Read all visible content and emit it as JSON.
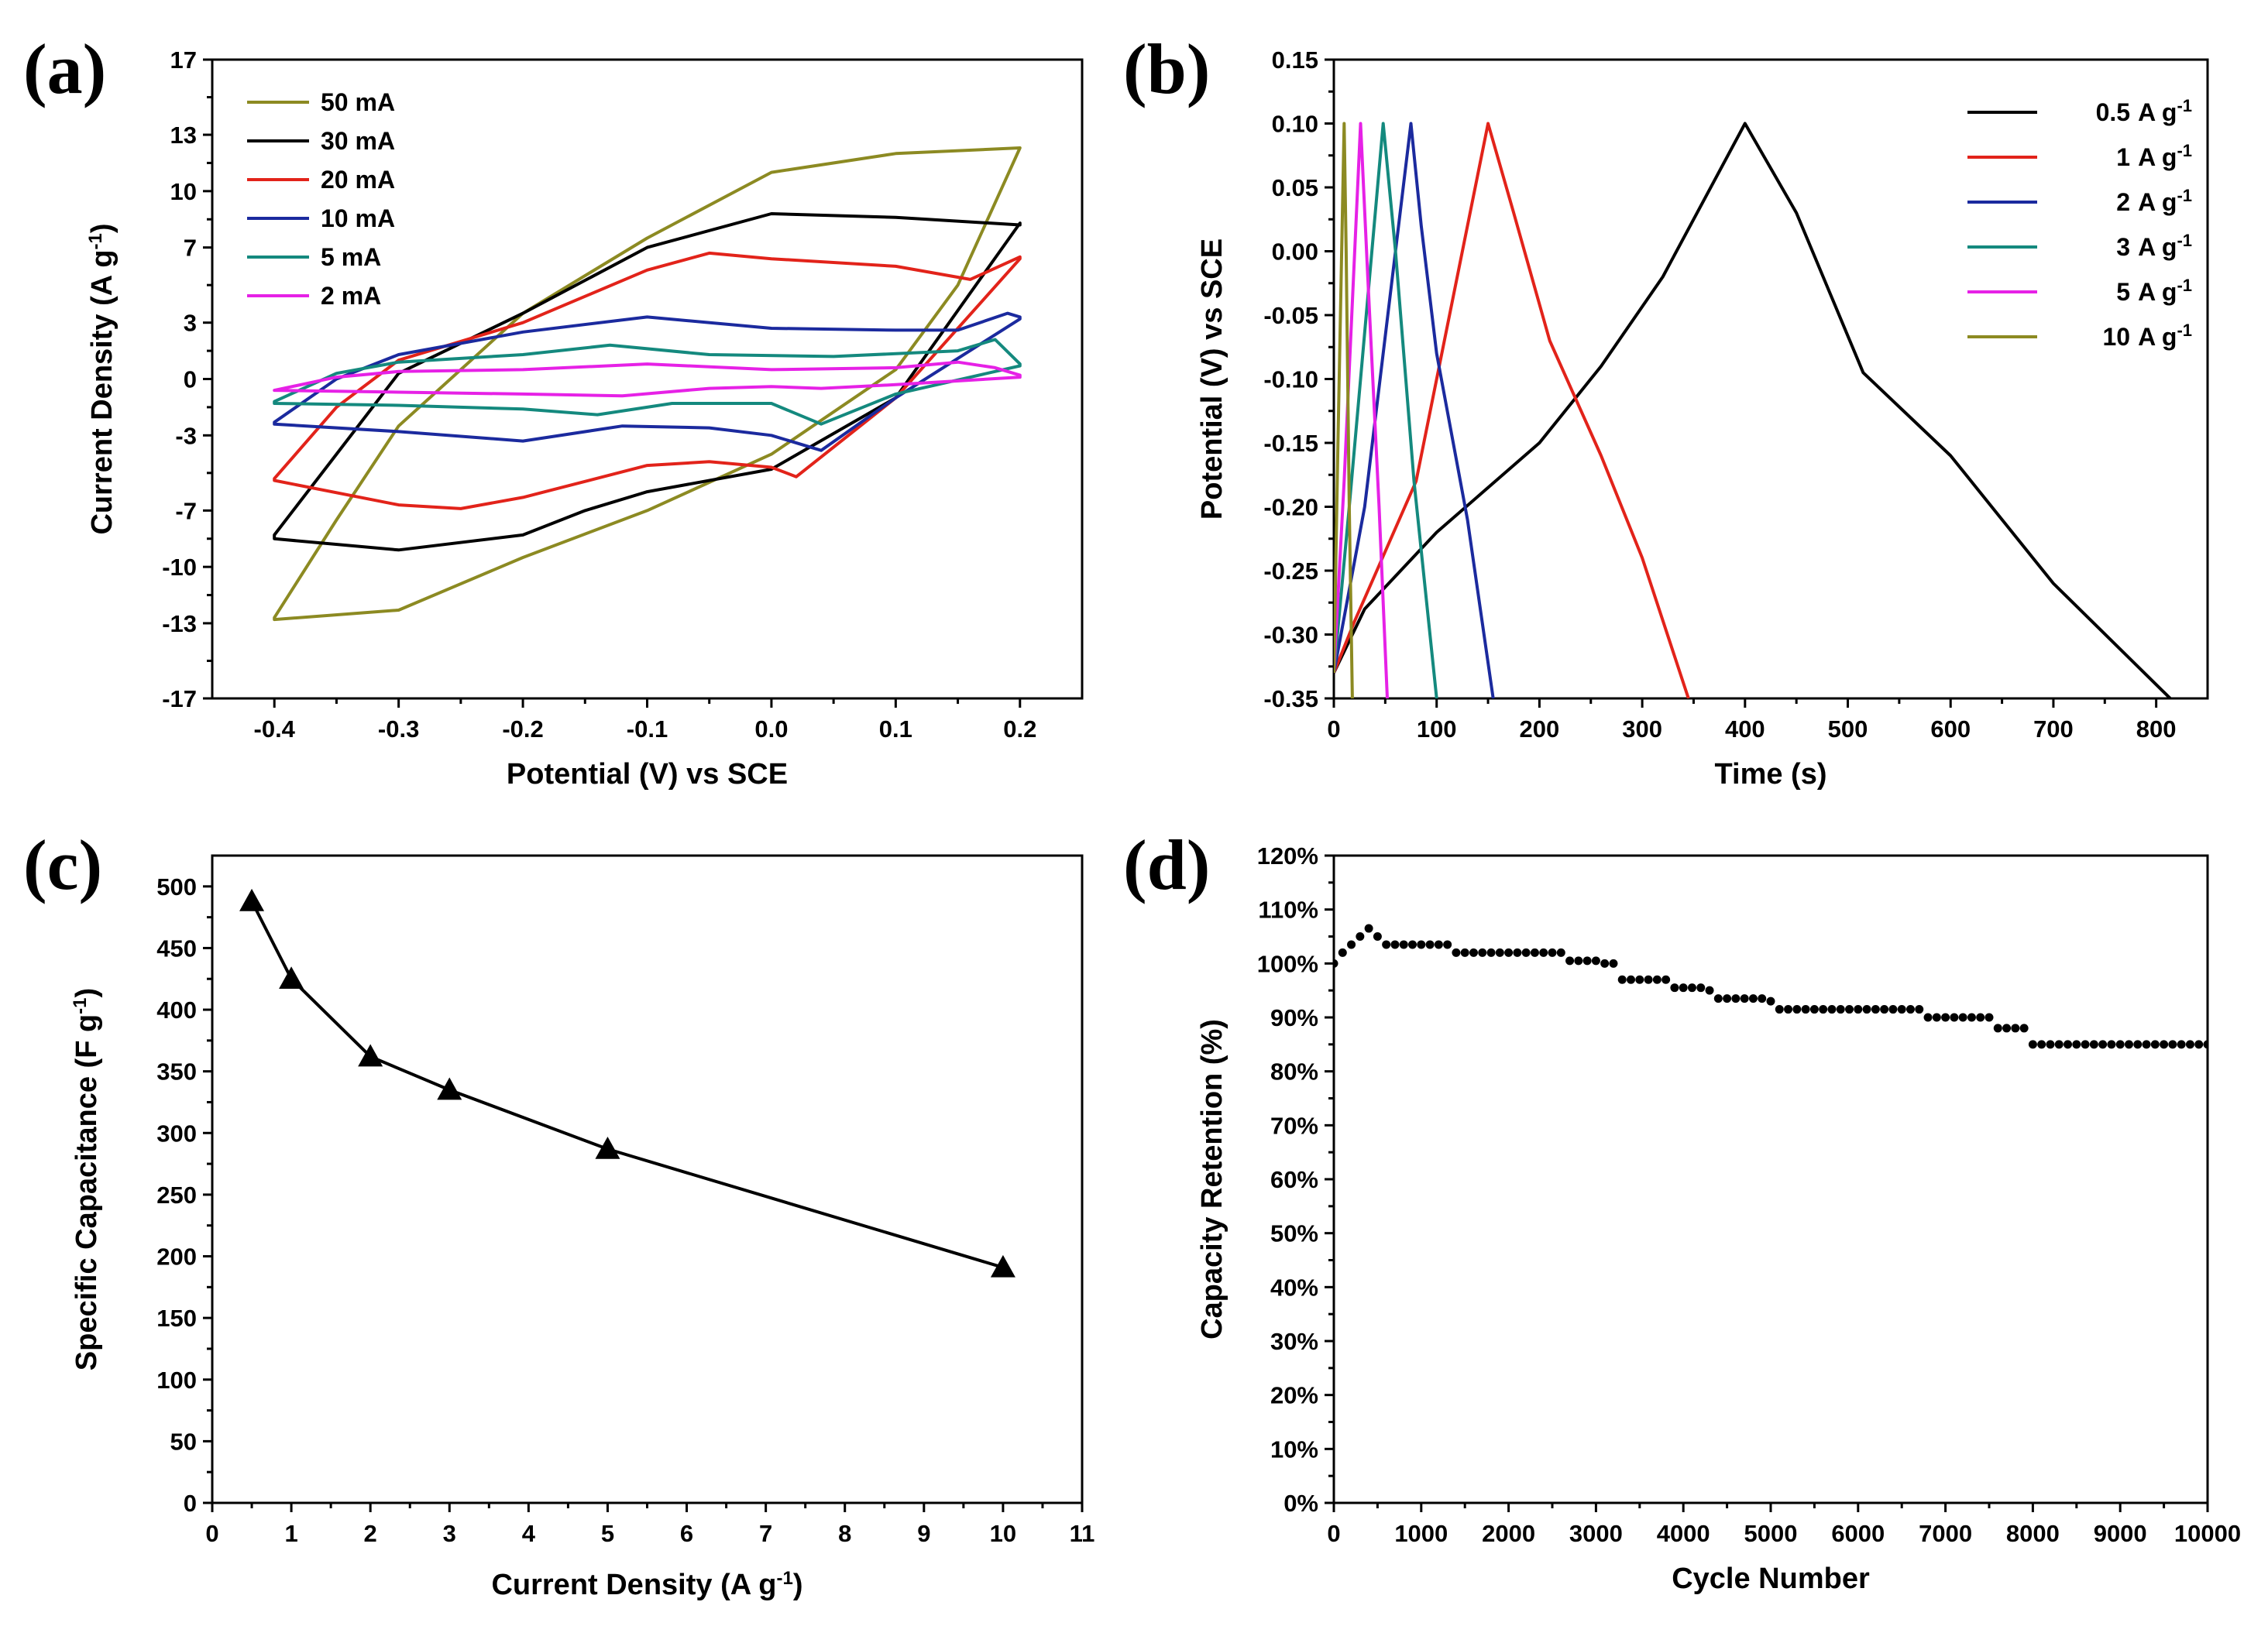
{
  "chart_data": [
    {
      "id": "a",
      "panel_label": "(a)",
      "type": "line",
      "xlabel": "Potential (V)   vs  SCE",
      "ylabel_main": "Current Density (A g",
      "ylabel_sup": "-1",
      "ylabel_end": ")",
      "xlim": [
        -0.45,
        0.25
      ],
      "ylim": [
        -17,
        17
      ],
      "xticks": [
        -0.4,
        -0.3,
        -0.2,
        -0.1,
        0.0,
        0.1,
        0.2
      ],
      "xtick_labels": [
        "-0.4",
        "-0.3",
        "-0.2",
        "-0.1",
        "0.0",
        "0.1",
        "0.2"
      ],
      "yticks": [
        -17,
        -13,
        -10,
        -7,
        -3,
        0,
        3,
        7,
        10,
        13,
        17
      ],
      "ytick_labels": [
        "-17",
        "-13",
        "-10",
        "-7",
        "-3",
        "0",
        "3",
        "7",
        "10",
        "13",
        "17"
      ],
      "legend_position": "top-left",
      "series": [
        {
          "name": "50 mA",
          "color": "#8c8a22",
          "upper": [
            [
              -0.4,
              -12.7
            ],
            [
              -0.35,
              -7.5
            ],
            [
              -0.3,
              -2.5
            ],
            [
              -0.2,
              3.5
            ],
            [
              -0.1,
              7.5
            ],
            [
              0.0,
              11.0
            ],
            [
              0.1,
              12.0
            ],
            [
              0.2,
              12.3
            ]
          ],
          "lower": [
            [
              -0.4,
              -12.8
            ],
            [
              -0.3,
              -12.3
            ],
            [
              -0.2,
              -9.5
            ],
            [
              -0.1,
              -7.0
            ],
            [
              0.0,
              -4.0
            ],
            [
              0.1,
              0.5
            ],
            [
              0.15,
              5.0
            ],
            [
              0.2,
              12.3
            ]
          ]
        },
        {
          "name": "30 mA",
          "color": "#000000",
          "upper": [
            [
              -0.4,
              -8.3
            ],
            [
              -0.35,
              -4.0
            ],
            [
              -0.3,
              0.3
            ],
            [
              -0.2,
              3.5
            ],
            [
              -0.1,
              7.0
            ],
            [
              0.0,
              8.8
            ],
            [
              0.1,
              8.6
            ],
            [
              0.2,
              8.2
            ]
          ],
          "lower": [
            [
              -0.4,
              -8.5
            ],
            [
              -0.3,
              -9.1
            ],
            [
              -0.2,
              -8.3
            ],
            [
              -0.15,
              -7.0
            ],
            [
              -0.1,
              -6.0
            ],
            [
              0.0,
              -4.8
            ],
            [
              0.1,
              -1.0
            ],
            [
              0.2,
              8.3
            ]
          ]
        },
        {
          "name": "20 mA",
          "color": "#e2231a",
          "upper": [
            [
              -0.4,
              -5.3
            ],
            [
              -0.35,
              -1.5
            ],
            [
              -0.3,
              1.0
            ],
            [
              -0.2,
              3.0
            ],
            [
              -0.1,
              5.8
            ],
            [
              -0.05,
              6.7
            ],
            [
              0.0,
              6.4
            ],
            [
              0.1,
              6.0
            ],
            [
              0.16,
              5.3
            ],
            [
              0.2,
              6.5
            ]
          ],
          "lower": [
            [
              -0.4,
              -5.4
            ],
            [
              -0.3,
              -6.7
            ],
            [
              -0.25,
              -6.9
            ],
            [
              -0.2,
              -6.3
            ],
            [
              -0.1,
              -4.6
            ],
            [
              -0.05,
              -4.4
            ],
            [
              0.0,
              -4.7
            ],
            [
              0.02,
              -5.2
            ],
            [
              0.1,
              -1.0
            ],
            [
              0.2,
              6.4
            ]
          ]
        },
        {
          "name": "10 mA",
          "color": "#1b2a9e",
          "upper": [
            [
              -0.4,
              -2.3
            ],
            [
              -0.35,
              0.0
            ],
            [
              -0.3,
              1.3
            ],
            [
              -0.2,
              2.5
            ],
            [
              -0.1,
              3.3
            ],
            [
              0.0,
              2.7
            ],
            [
              0.1,
              2.6
            ],
            [
              0.15,
              2.6
            ],
            [
              0.19,
              3.5
            ],
            [
              0.2,
              3.3
            ]
          ],
          "lower": [
            [
              -0.4,
              -2.4
            ],
            [
              -0.3,
              -2.8
            ],
            [
              -0.2,
              -3.3
            ],
            [
              -0.12,
              -2.5
            ],
            [
              -0.05,
              -2.6
            ],
            [
              0.0,
              -3.0
            ],
            [
              0.04,
              -3.8
            ],
            [
              0.1,
              -1.0
            ],
            [
              0.2,
              3.2
            ]
          ]
        },
        {
          "name": "5 mA",
          "color": "#14897e",
          "upper": [
            [
              -0.4,
              -1.2
            ],
            [
              -0.35,
              0.3
            ],
            [
              -0.3,
              0.9
            ],
            [
              -0.2,
              1.3
            ],
            [
              -0.13,
              1.8
            ],
            [
              -0.05,
              1.3
            ],
            [
              0.05,
              1.2
            ],
            [
              0.15,
              1.5
            ],
            [
              0.18,
              2.1
            ],
            [
              0.2,
              0.8
            ]
          ],
          "lower": [
            [
              -0.4,
              -1.3
            ],
            [
              -0.3,
              -1.4
            ],
            [
              -0.2,
              -1.6
            ],
            [
              -0.14,
              -1.9
            ],
            [
              -0.08,
              -1.3
            ],
            [
              0.0,
              -1.3
            ],
            [
              0.04,
              -2.4
            ],
            [
              0.1,
              -0.8
            ],
            [
              0.2,
              0.7
            ]
          ]
        },
        {
          "name": "2 mA",
          "color": "#e621e6",
          "upper": [
            [
              -0.4,
              -0.6
            ],
            [
              -0.35,
              0.1
            ],
            [
              -0.3,
              0.4
            ],
            [
              -0.2,
              0.5
            ],
            [
              -0.1,
              0.8
            ],
            [
              0.0,
              0.5
            ],
            [
              0.1,
              0.6
            ],
            [
              0.15,
              0.9
            ],
            [
              0.18,
              0.6
            ],
            [
              0.2,
              0.2
            ]
          ],
          "lower": [
            [
              -0.4,
              -0.6
            ],
            [
              -0.3,
              -0.7
            ],
            [
              -0.2,
              -0.8
            ],
            [
              -0.12,
              -0.9
            ],
            [
              -0.05,
              -0.5
            ],
            [
              0.0,
              -0.4
            ],
            [
              0.04,
              -0.5
            ],
            [
              0.1,
              -0.3
            ],
            [
              0.2,
              0.1
            ]
          ]
        }
      ]
    },
    {
      "id": "b",
      "panel_label": "(b)",
      "type": "line",
      "xlabel": "Time (s)",
      "ylabel": "Potential (V) vs SCE",
      "xlim": [
        0,
        850
      ],
      "ylim": [
        -0.35,
        0.15
      ],
      "xticks": [
        0,
        100,
        200,
        300,
        400,
        500,
        600,
        700,
        800
      ],
      "xtick_labels": [
        "0",
        "100",
        "200",
        "300",
        "400",
        "500",
        "600",
        "700",
        "800"
      ],
      "yticks": [
        -0.35,
        -0.3,
        -0.25,
        -0.2,
        -0.15,
        -0.1,
        -0.05,
        0.0,
        0.05,
        0.1,
        0.15
      ],
      "ytick_labels": [
        "-0.35",
        "-0.30",
        "-0.25",
        "-0.20",
        "-0.15",
        "-0.10",
        "-0.05",
        "0.00",
        "0.05",
        "0.10",
        "0.15"
      ],
      "legend_position": "top-right",
      "legend_unit": "A g",
      "legend_sup": "-1",
      "series": [
        {
          "name": "0.5",
          "color": "#000000",
          "points": [
            [
              0,
              -0.33
            ],
            [
              30,
              -0.28
            ],
            [
              100,
              -0.22
            ],
            [
              200,
              -0.15
            ],
            [
              260,
              -0.09
            ],
            [
              320,
              -0.02
            ],
            [
              400,
              0.1
            ],
            [
              450,
              0.03
            ],
            [
              515,
              -0.095
            ],
            [
              600,
              -0.16
            ],
            [
              700,
              -0.26
            ],
            [
              820,
              -0.355
            ]
          ]
        },
        {
          "name": "1",
          "color": "#e2231a",
          "points": [
            [
              0,
              -0.33
            ],
            [
              20,
              -0.29
            ],
            [
              80,
              -0.18
            ],
            [
              150,
              0.1
            ],
            [
              175,
              0.03
            ],
            [
              210,
              -0.07
            ],
            [
              260,
              -0.16
            ],
            [
              300,
              -0.24
            ],
            [
              345,
              -0.35
            ]
          ]
        },
        {
          "name": "2",
          "color": "#1b2a9e",
          "points": [
            [
              0,
              -0.33
            ],
            [
              30,
              -0.2
            ],
            [
              75,
              0.1
            ],
            [
              85,
              0.02
            ],
            [
              100,
              -0.08
            ],
            [
              130,
              -0.21
            ],
            [
              155,
              -0.35
            ]
          ]
        },
        {
          "name": "3",
          "color": "#14897e",
          "points": [
            [
              0,
              -0.33
            ],
            [
              15,
              -0.2
            ],
            [
              48,
              0.1
            ],
            [
              60,
              0.0
            ],
            [
              78,
              -0.18
            ],
            [
              100,
              -0.35
            ]
          ]
        },
        {
          "name": "5",
          "color": "#e621e6",
          "points": [
            [
              0,
              -0.33
            ],
            [
              10,
              -0.18
            ],
            [
              26,
              0.1
            ],
            [
              33,
              -0.02
            ],
            [
              44,
              -0.2
            ],
            [
              52,
              -0.35
            ]
          ]
        },
        {
          "name": "10",
          "color": "#8c8a22",
          "points": [
            [
              0,
              -0.33
            ],
            [
              4,
              -0.15
            ],
            [
              10,
              0.1
            ],
            [
              12,
              0.0
            ],
            [
              15,
              -0.2
            ],
            [
              18,
              -0.35
            ]
          ]
        }
      ]
    },
    {
      "id": "c",
      "panel_label": "(c)",
      "type": "line",
      "xlabel_main": "Current Density (A g",
      "xlabel_sup": "-1",
      "xlabel_end": ")",
      "ylabel_main": "Specific Capacitance (F g",
      "ylabel_sup": "-1",
      "ylabel_end": ")",
      "xlim": [
        0,
        11
      ],
      "ylim": [
        0,
        525
      ],
      "xticks": [
        0,
        1,
        2,
        3,
        4,
        5,
        6,
        7,
        8,
        9,
        10,
        11
      ],
      "xtick_labels": [
        "0",
        "1",
        "2",
        "3",
        "4",
        "5",
        "6",
        "7",
        "8",
        "9",
        "10",
        "11"
      ],
      "yticks": [
        0,
        50,
        100,
        150,
        200,
        250,
        300,
        350,
        400,
        450,
        500
      ],
      "ytick_labels": [
        "0",
        "50",
        "100",
        "150",
        "200",
        "250",
        "300",
        "350",
        "400",
        "450",
        "500"
      ],
      "x": [
        0.5,
        1,
        2,
        3,
        5,
        10
      ],
      "values": [
        488,
        425,
        362,
        335,
        287,
        191
      ],
      "marker": "triangle",
      "color": "#000000"
    },
    {
      "id": "d",
      "panel_label": "(d)",
      "type": "scatter",
      "xlabel": "Cycle Number",
      "ylabel": "Capacity Retention (%)",
      "xlim": [
        0,
        10000
      ],
      "ylim": [
        0,
        120
      ],
      "xticks": [
        0,
        1000,
        2000,
        3000,
        4000,
        5000,
        6000,
        7000,
        8000,
        9000,
        10000
      ],
      "xtick_labels": [
        "0",
        "1000",
        "2000",
        "3000",
        "4000",
        "5000",
        "6000",
        "7000",
        "8000",
        "9000",
        "10000"
      ],
      "yticks": [
        0,
        10,
        20,
        30,
        40,
        50,
        60,
        70,
        80,
        90,
        100,
        110,
        120
      ],
      "ytick_labels": [
        "0%",
        "10%",
        "20%",
        "30%",
        "40%",
        "50%",
        "60%",
        "70%",
        "80%",
        "90%",
        "100%",
        "110%",
        "120%"
      ],
      "series_steps": [
        [
          0,
          100
        ],
        [
          100,
          102
        ],
        [
          200,
          103.5
        ],
        [
          300,
          105
        ],
        [
          400,
          106.5
        ],
        [
          500,
          105
        ],
        [
          600,
          103.5
        ],
        [
          1400,
          102
        ],
        [
          2600,
          102
        ],
        [
          2700,
          100.5
        ],
        [
          3100,
          100
        ],
        [
          3300,
          97
        ],
        [
          3800,
          97
        ],
        [
          3850,
          95.5
        ],
        [
          4300,
          95
        ],
        [
          4400,
          93.5
        ],
        [
          5000,
          93
        ],
        [
          5100,
          91.5
        ],
        [
          6700,
          91.5
        ],
        [
          6800,
          90
        ],
        [
          7500,
          90
        ],
        [
          7600,
          88
        ],
        [
          7900,
          88
        ],
        [
          8000,
          85
        ],
        [
          10000,
          85
        ]
      ],
      "point_spacing": 100,
      "marker": "circle",
      "color": "#000000"
    }
  ]
}
